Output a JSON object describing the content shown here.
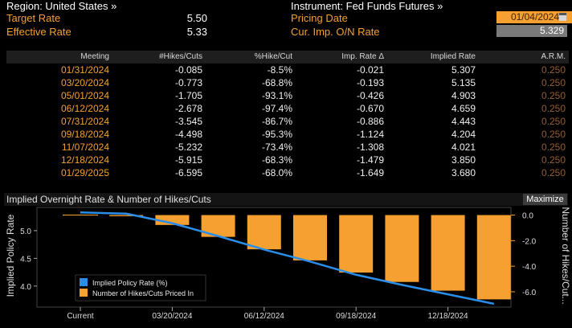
{
  "header": {
    "region_label": "Region: United States »",
    "instrument_label": "Instrument: Fed Funds Futures »",
    "target_rate_label": "Target Rate",
    "target_rate_value": "5.50",
    "effective_rate_label": "Effective Rate",
    "effective_rate_value": "5.33",
    "pricing_date_label": "Pricing Date",
    "pricing_date_value": "01/04/2024",
    "cur_imp_label": "Cur. Imp. O/N Rate",
    "cur_imp_value": "5.329",
    "calendar_icon": "calendar-icon"
  },
  "table": {
    "columns": [
      "Meeting",
      "#Hikes/Cuts",
      "%Hike/Cut",
      "Imp. Rate Δ",
      "Implied Rate",
      "A.R.M."
    ],
    "rows": [
      [
        "01/31/2024",
        "-0.085",
        "-8.5%",
        "-0.021",
        "5.307",
        "0.250"
      ],
      [
        "03/20/2024",
        "-0.773",
        "-68.8%",
        "-0.193",
        "5.135",
        "0.250"
      ],
      [
        "05/01/2024",
        "-1.705",
        "-93.1%",
        "-0.426",
        "4.903",
        "0.250"
      ],
      [
        "06/12/2024",
        "-2.678",
        "-97.4%",
        "-0.670",
        "4.659",
        "0.250"
      ],
      [
        "07/31/2024",
        "-3.545",
        "-86.7%",
        "-0.886",
        "4.443",
        "0.250"
      ],
      [
        "09/18/2024",
        "-4.498",
        "-95.3%",
        "-1.124",
        "4.204",
        "0.250"
      ],
      [
        "11/07/2024",
        "-5.232",
        "-73.4%",
        "-1.308",
        "4.021",
        "0.250"
      ],
      [
        "12/18/2024",
        "-5.915",
        "-68.3%",
        "-1.479",
        "3.850",
        "0.250"
      ],
      [
        "01/29/2025",
        "-6.595",
        "-68.0%",
        "-1.649",
        "3.680",
        "0.250"
      ]
    ]
  },
  "chart_header": {
    "title": "Implied Overnight Rate & Number of Hikes/Cuts",
    "maximize_label": "Maximize"
  },
  "chart_data": {
    "type": "bar",
    "title": "Implied Overnight Rate & Number of Hikes/Cuts",
    "ylabel": "Implied Policy Rate",
    "y2label": "Number of Hikes/Cut...",
    "x_ticks": [
      "Current",
      "03/20/2024",
      "06/12/2024",
      "09/18/2024",
      "12/18/2024"
    ],
    "y_ticks": [
      "5.0",
      "4.5",
      "4.0"
    ],
    "y_tick_values": [
      5.0,
      4.5,
      4.0
    ],
    "y2_ticks": [
      "0.0",
      "-2.0",
      "-4.0",
      "-6.0"
    ],
    "y2_tick_values": [
      0,
      -2,
      -4,
      -6
    ],
    "ylim": [
      3.62,
      5.42
    ],
    "y2lim": [
      -7.2,
      0.6
    ],
    "categories": [
      "Current",
      "01/31/2024",
      "03/20/2024",
      "05/01/2024",
      "06/12/2024",
      "07/31/2024",
      "09/18/2024",
      "11/07/2024",
      "12/18/2024",
      "01/29/2025"
    ],
    "series": [
      {
        "name": "Implied Policy Rate (%)",
        "kind": "line",
        "axis": "left",
        "color": "#2a8ee8",
        "values": [
          5.329,
          5.307,
          5.135,
          4.903,
          4.659,
          4.443,
          4.204,
          4.021,
          3.85,
          3.68
        ]
      },
      {
        "name": "Number of Hikes/Cuts Priced In",
        "kind": "bar",
        "axis": "right",
        "color": "#f5a030",
        "values": [
          0,
          -0.085,
          -0.773,
          -1.705,
          -2.678,
          -3.545,
          -4.498,
          -5.232,
          -5.915,
          -6.595
        ]
      }
    ],
    "legend_placement": "bottom-left",
    "grid": false
  }
}
